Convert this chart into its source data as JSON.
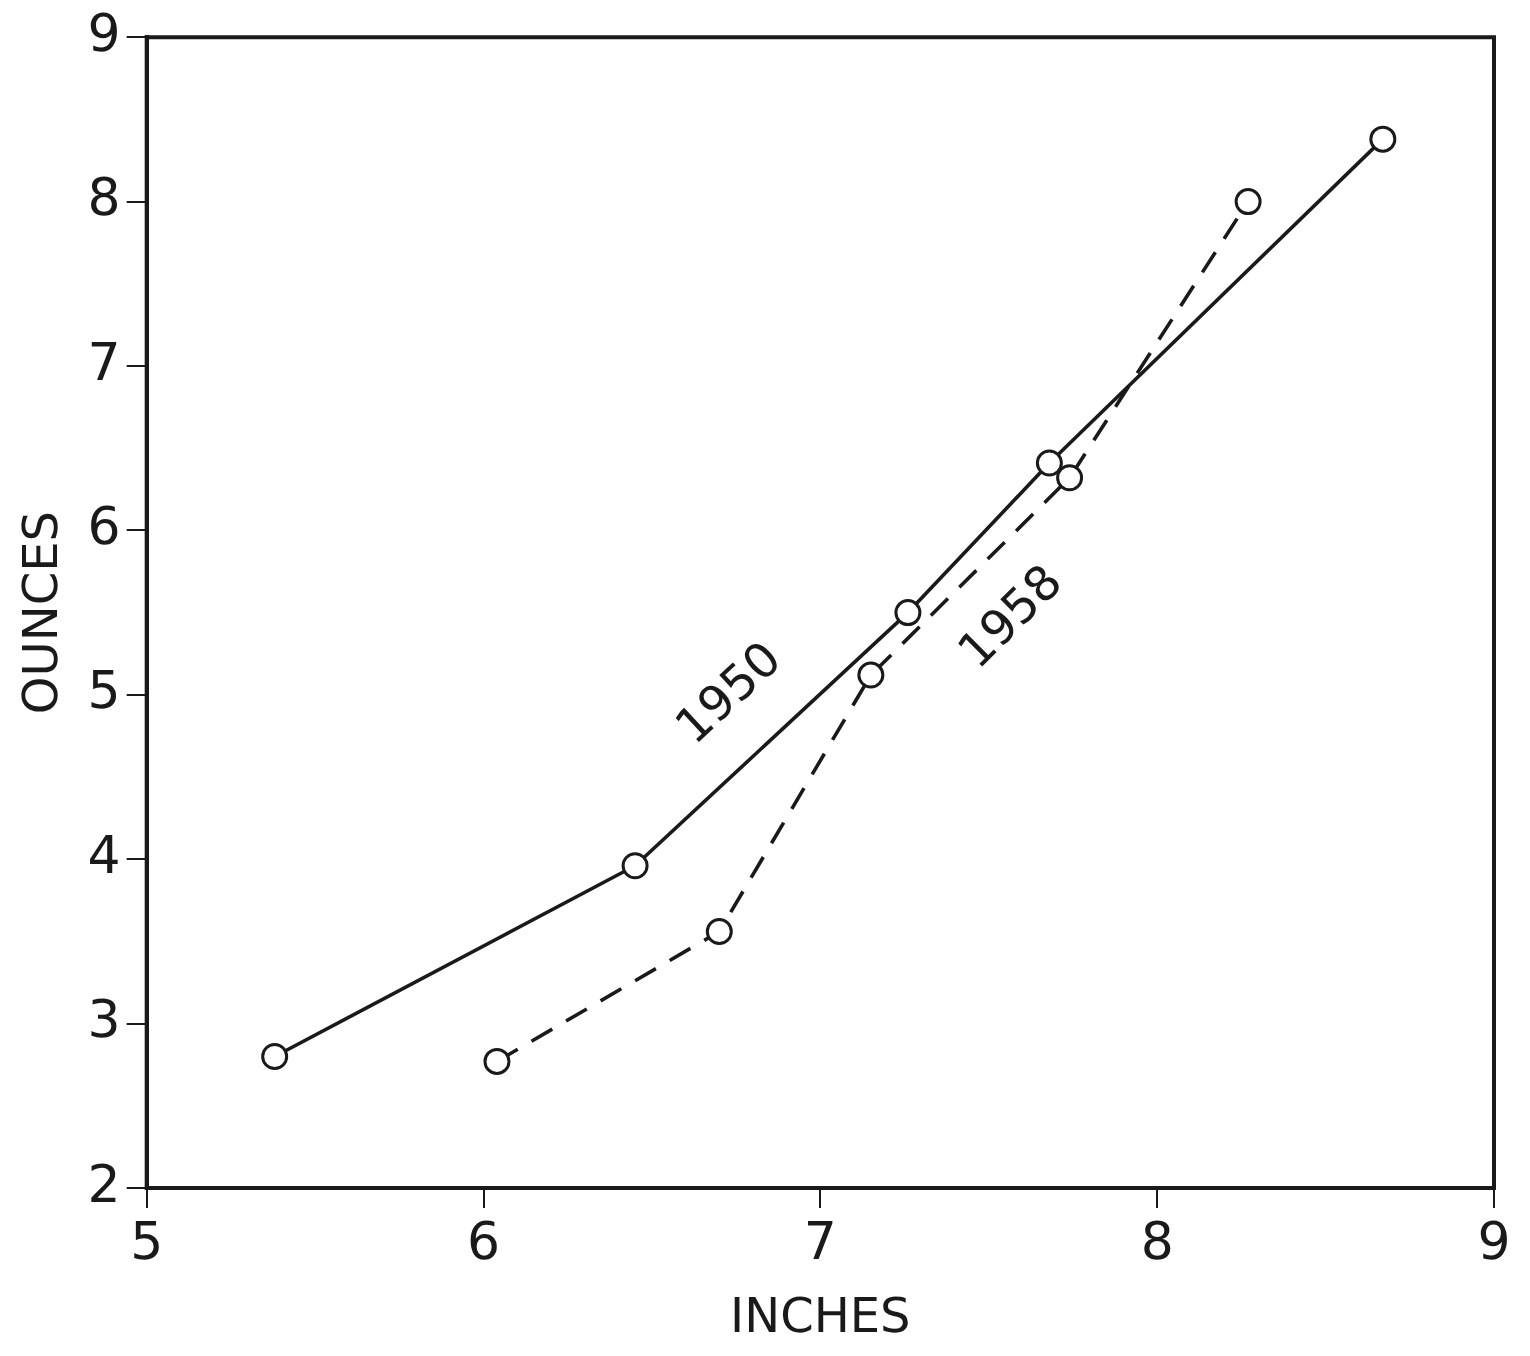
{
  "chart_data": {
    "type": "line",
    "xlabel": "INCHES",
    "ylabel": "OUNCES",
    "xlim": [
      5,
      9
    ],
    "xticks": [
      5,
      6,
      7,
      8,
      9
    ],
    "ylim": [
      2,
      9
    ],
    "yticks": [
      2,
      3,
      4,
      5,
      6,
      7,
      8,
      9
    ],
    "grid": false,
    "legend": false,
    "marker": "circle",
    "series": [
      {
        "name": "1950",
        "color": "#1a1a1a",
        "line_style": "solid",
        "x": [
          5.38,
          6.45,
          7.26,
          7.68,
          8.67
        ],
        "values": [
          2.8,
          3.96,
          5.5,
          6.41,
          8.38
        ]
      },
      {
        "name": "1958",
        "color": "#1a1a1a",
        "line_style": "dashed",
        "x": [
          6.04,
          6.7,
          7.15,
          7.74,
          8.27
        ],
        "values": [
          2.77,
          3.56,
          5.12,
          6.32,
          8.0
        ]
      }
    ]
  }
}
